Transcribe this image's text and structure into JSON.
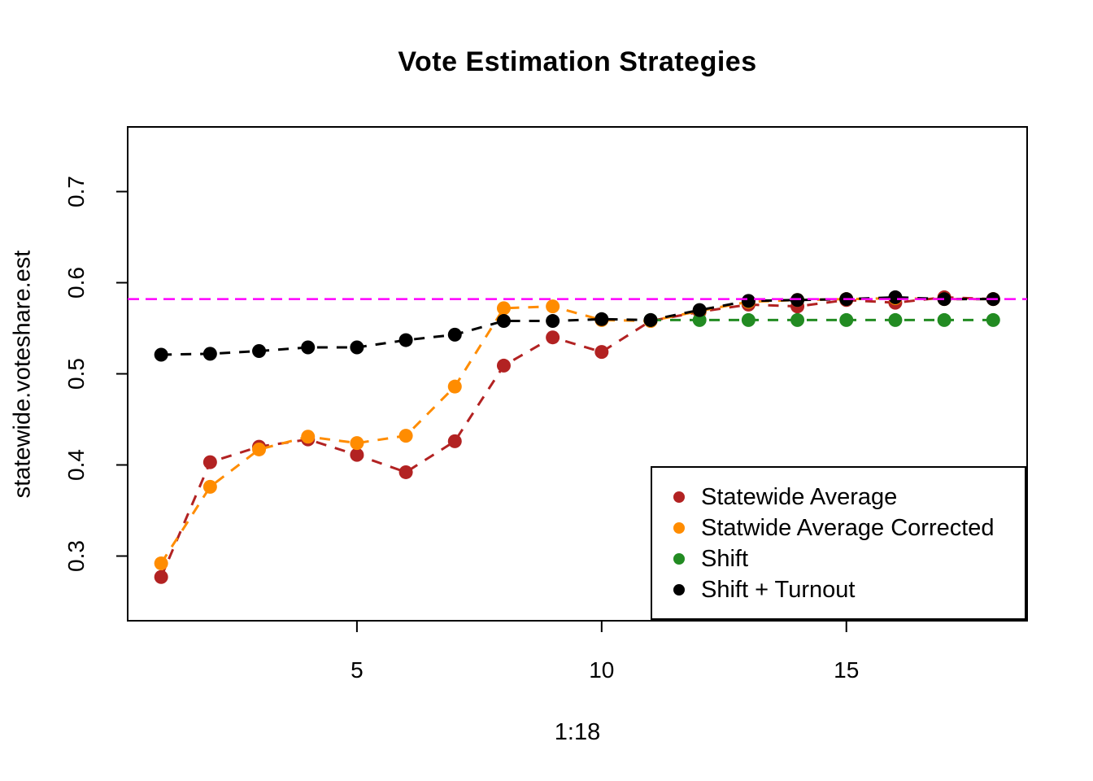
{
  "figure": {
    "title": "Vote Estimation Strategies",
    "x_axis_label": "1:18",
    "y_axis_label": "statewide.voteshare.est"
  },
  "chart_data": {
    "type": "line",
    "title": "Vote Estimation Strategies",
    "xlabel": "1:18",
    "ylabel": "statewide.voteshare.est",
    "xlim": [
      0.316,
      18.693
    ],
    "ylim": [
      0.229,
      0.771
    ],
    "x_ticks": [
      5,
      10,
      15
    ],
    "x_tick_labels": [
      "5",
      "10",
      "15"
    ],
    "y_ticks": [
      0.3,
      0.4,
      0.5,
      0.6,
      0.7
    ],
    "y_tick_labels": [
      "0.3",
      "0.4",
      "0.5",
      "0.6",
      "0.7"
    ],
    "grid": false,
    "legend_position": "bottom-right",
    "point_style": "filled-circle",
    "line_style": "dashed",
    "reference_line": {
      "y": 0.582,
      "color": "#FF00FF",
      "style": "dashed"
    },
    "x": [
      1,
      2,
      3,
      4,
      5,
      6,
      7,
      8,
      9,
      10,
      11,
      12,
      13,
      14,
      15,
      16,
      17,
      18
    ],
    "series": [
      {
        "name": "Statewide Average",
        "color": "#B22222",
        "values": [
          0.277,
          0.403,
          0.42,
          0.428,
          0.411,
          0.392,
          0.426,
          0.509,
          0.54,
          0.524,
          0.558,
          0.568,
          0.576,
          0.574,
          0.581,
          0.578,
          0.584,
          0.582
        ]
      },
      {
        "name": "Statwide Average Corrected",
        "color": "#FF8C00",
        "values": [
          0.292,
          0.376,
          0.417,
          0.431,
          0.424,
          0.432,
          0.486,
          0.572,
          0.574,
          0.559,
          0.558,
          0.569,
          0.579,
          0.581,
          0.582,
          0.583,
          0.582,
          0.582
        ]
      },
      {
        "name": "Shift",
        "color": "#228B22",
        "x": [
          11,
          12,
          13,
          14,
          15,
          16,
          17,
          18
        ],
        "values": [
          0.559,
          0.559,
          0.559,
          0.559,
          0.559,
          0.559,
          0.559,
          0.559
        ]
      },
      {
        "name": "Shift + Turnout",
        "color": "#000000",
        "values": [
          0.521,
          0.522,
          0.525,
          0.529,
          0.529,
          0.537,
          0.543,
          0.558,
          0.558,
          0.56,
          0.559,
          0.57,
          0.58,
          0.581,
          0.582,
          0.584,
          0.582,
          0.582
        ]
      }
    ]
  },
  "legend": {
    "items": [
      {
        "label": "Statewide Average",
        "color": "#B22222"
      },
      {
        "label": "Statwide Average Corrected",
        "color": "#FF8C00"
      },
      {
        "label": "Shift",
        "color": "#228B22"
      },
      {
        "label": "Shift + Turnout",
        "color": "#000000"
      }
    ]
  }
}
